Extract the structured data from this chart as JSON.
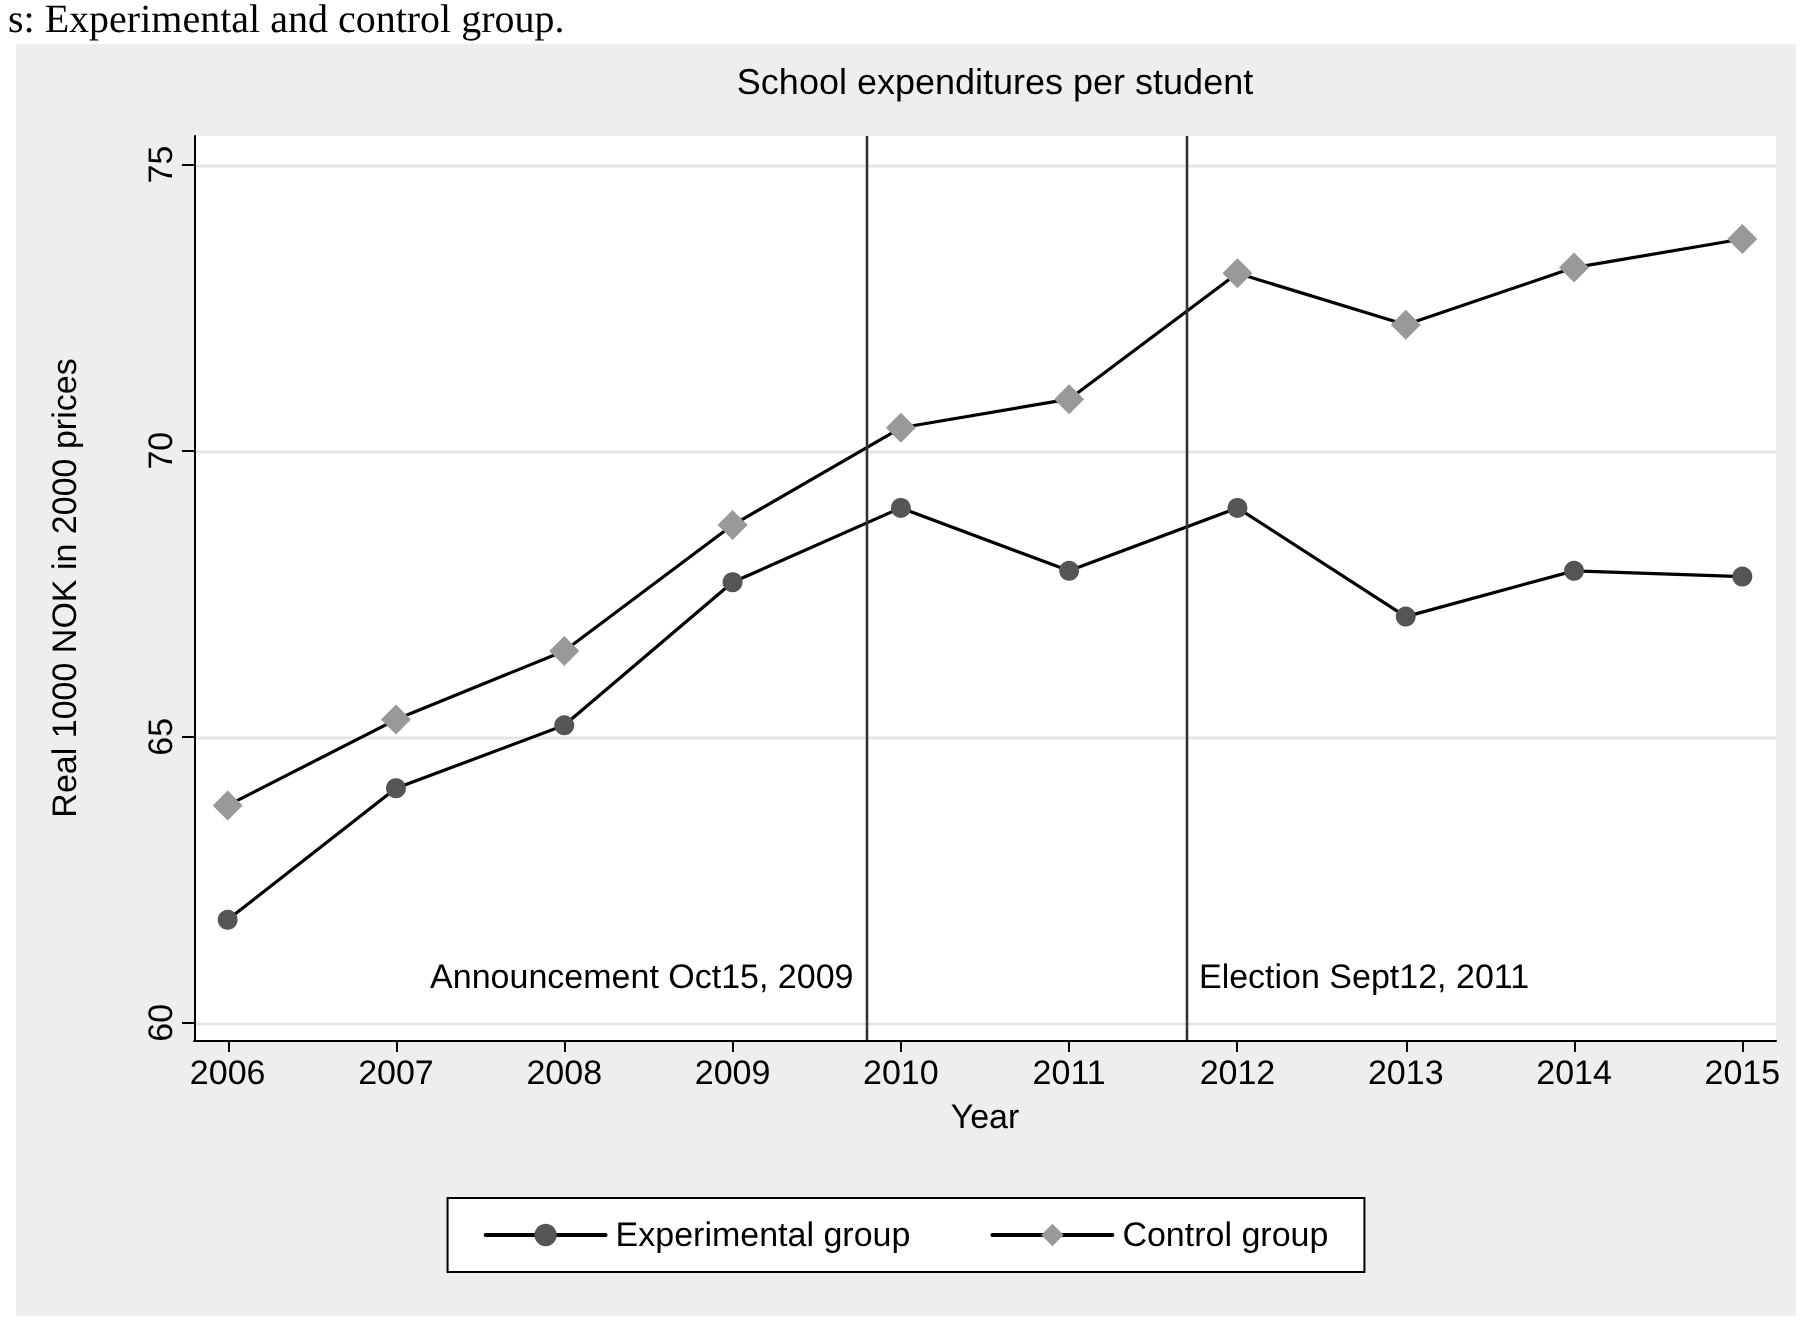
{
  "chart_data": {
    "type": "line",
    "title": "School expenditures per student",
    "xlabel": "Year",
    "ylabel": "Real 1000 NOK in 2000 prices",
    "annotations": [
      "s: Experimental and control group."
    ],
    "x": [
      2006,
      2007,
      2008,
      2009,
      2010,
      2011,
      2012,
      2013,
      2014,
      2015
    ],
    "series": [
      {
        "name": "Experimental group",
        "color": "#555555",
        "marker": "circle",
        "values": [
          61.8,
          64.1,
          65.2,
          67.7,
          69.0,
          67.9,
          69.0,
          67.1,
          67.9,
          67.8
        ]
      },
      {
        "name": "Control group",
        "color": "#999999",
        "marker": "diamond",
        "values": [
          63.8,
          65.3,
          66.5,
          68.7,
          70.4,
          70.9,
          73.1,
          72.2,
          73.2,
          73.7
        ]
      }
    ],
    "xlim": [
      2005.8,
      2015.2
    ],
    "xticks": [
      2006,
      2007,
      2008,
      2009,
      2010,
      2011,
      2012,
      2013,
      2014,
      2015
    ],
    "ylim": [
      59.7,
      75.5
    ],
    "yticks": [
      60,
      65,
      70,
      75
    ],
    "ref_lines": [
      {
        "axis": "x",
        "value": 2009.79,
        "label": "Announcement Oct15, 2009",
        "color": "#333333"
      },
      {
        "axis": "x",
        "value": 2011.7,
        "label": "Election Sept12, 2011",
        "color": "#333333"
      }
    ],
    "grid": "y",
    "legend": "bottom",
    "line_style": "solid"
  }
}
